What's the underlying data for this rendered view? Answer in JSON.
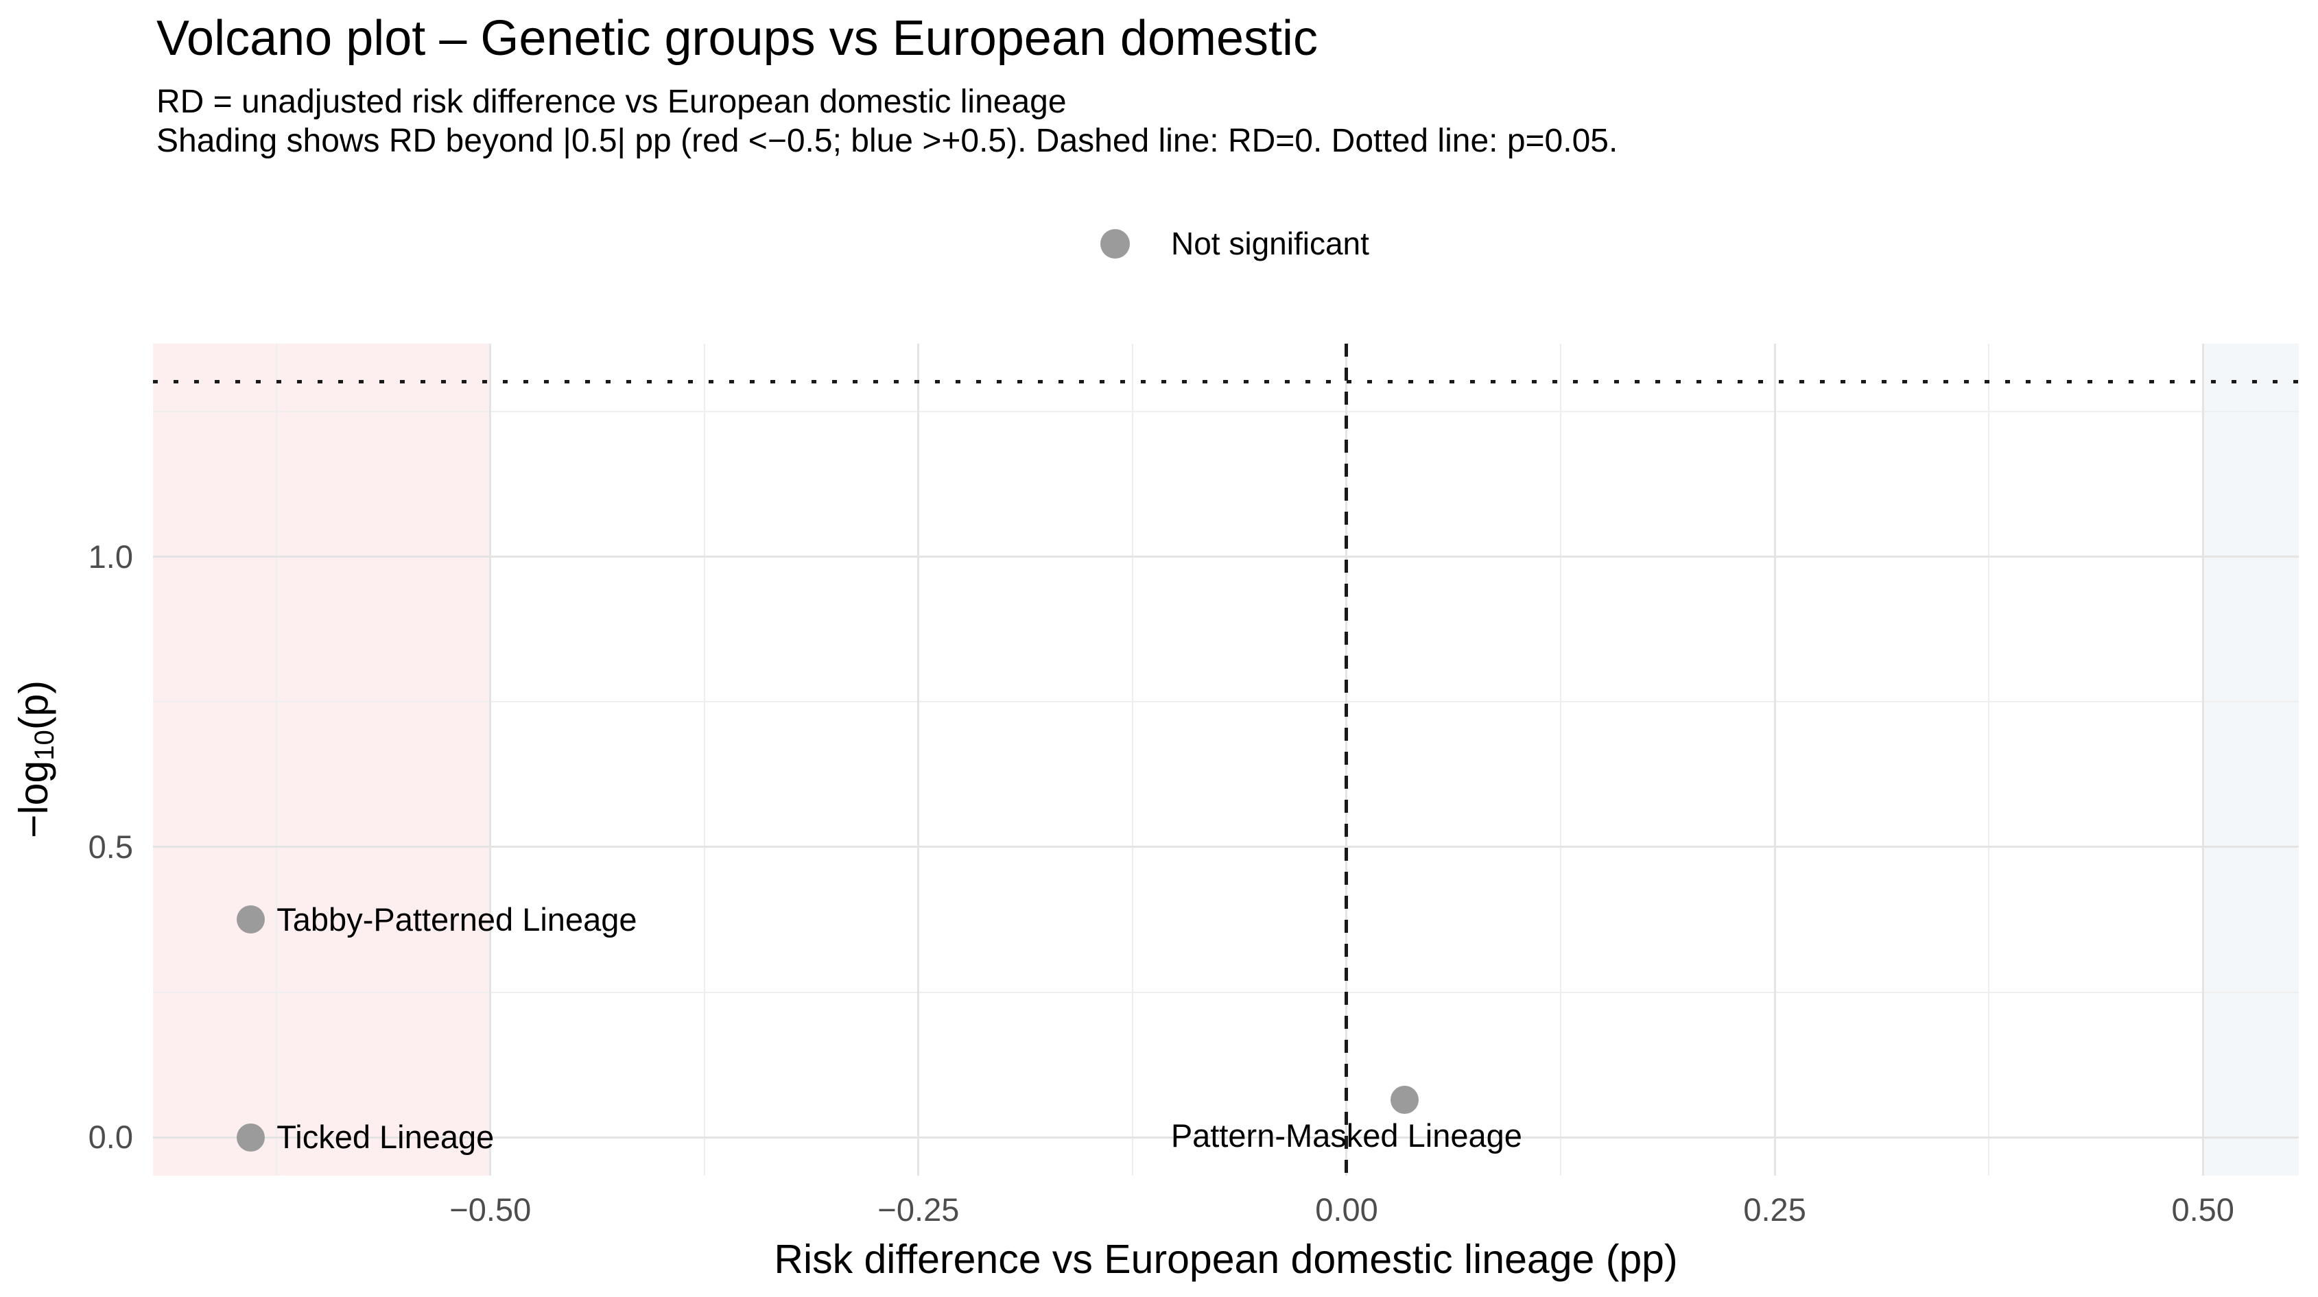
{
  "colors": {
    "background": "#ffffff",
    "grid_major": "#e4e4e4",
    "grid_minor": "#eeeeee",
    "tick_label": "#4d4d4d",
    "text": "#000000",
    "point": "#9b9b9b",
    "reference_line": "#1a1a1a",
    "region_negative": "#fdefef",
    "region_positive": "#f3f7fa"
  },
  "chart_data": {
    "type": "scatter",
    "title": "Volcano plot – Genetic groups vs European domestic",
    "subtitle_lines": [
      "RD = unadjusted risk difference vs European domestic lineage",
      "Shading shows RD beyond |0.5| pp (red <−0.5; blue >+0.5). Dashed line: RD=0. Dotted line: p=0.05."
    ],
    "xlabel": "Risk difference vs European domestic lineage (pp)",
    "ylabel": "−log10(p)",
    "ylabel_parts": {
      "pre": "−log",
      "sub": "10",
      "post": "(p)"
    },
    "xlim": [
      -0.697,
      0.556
    ],
    "ylim": [
      -0.066,
      1.367
    ],
    "grid": true,
    "x_ticks": [
      {
        "value": -0.5,
        "label": "−0.50"
      },
      {
        "value": -0.25,
        "label": "−0.25"
      },
      {
        "value": 0.0,
        "label": "0.00"
      },
      {
        "value": 0.25,
        "label": "0.25"
      },
      {
        "value": 0.5,
        "label": "0.50"
      }
    ],
    "y_ticks": [
      {
        "value": 0.0,
        "label": "0.0"
      },
      {
        "value": 0.5,
        "label": "0.5"
      },
      {
        "value": 1.0,
        "label": "1.0"
      }
    ],
    "x_minor_gridlines": [
      -0.625,
      -0.375,
      -0.125,
      0.125,
      0.375
    ],
    "y_minor_gridlines": [
      0.25,
      0.75,
      1.25
    ],
    "legend": {
      "position": "top-center",
      "items": [
        {
          "label": "Not significant",
          "color": "#9b9b9b"
        }
      ]
    },
    "reference_lines": [
      {
        "type": "vline",
        "x": 0,
        "style": "dashed",
        "meaning": "RD=0"
      },
      {
        "type": "hline",
        "y": 1.301,
        "style": "dotted",
        "meaning": "p=0.05"
      }
    ],
    "shaded_regions": [
      {
        "name": "shaded-region-red-negative",
        "x_from": "panel-left",
        "x_to": -0.5,
        "color": "#fdefef",
        "meaning": "RD < −0.5"
      },
      {
        "name": "shaded-region-blue-positive",
        "x_from": 0.5,
        "x_to": "panel-right",
        "color": "#f3f7fa",
        "meaning": "RD > +0.5"
      }
    ],
    "series": [
      {
        "name": "Not significant",
        "color": "#9b9b9b",
        "points": [
          {
            "label": "Tabby-Patterned Lineage",
            "x": -0.64,
            "y": 0.375,
            "label_anchor": "start",
            "label_dx": 38,
            "label_dy": 0
          },
          {
            "label": "Ticked Lineage",
            "x": -0.64,
            "y": 0.0,
            "label_anchor": "start",
            "label_dx": 38,
            "label_dy": 0
          },
          {
            "label": "Pattern-Masked Lineage",
            "x": 0.034,
            "y": 0.065,
            "label_anchor": "middle",
            "label_dx": -85,
            "label_dy": 53
          }
        ]
      }
    ]
  }
}
